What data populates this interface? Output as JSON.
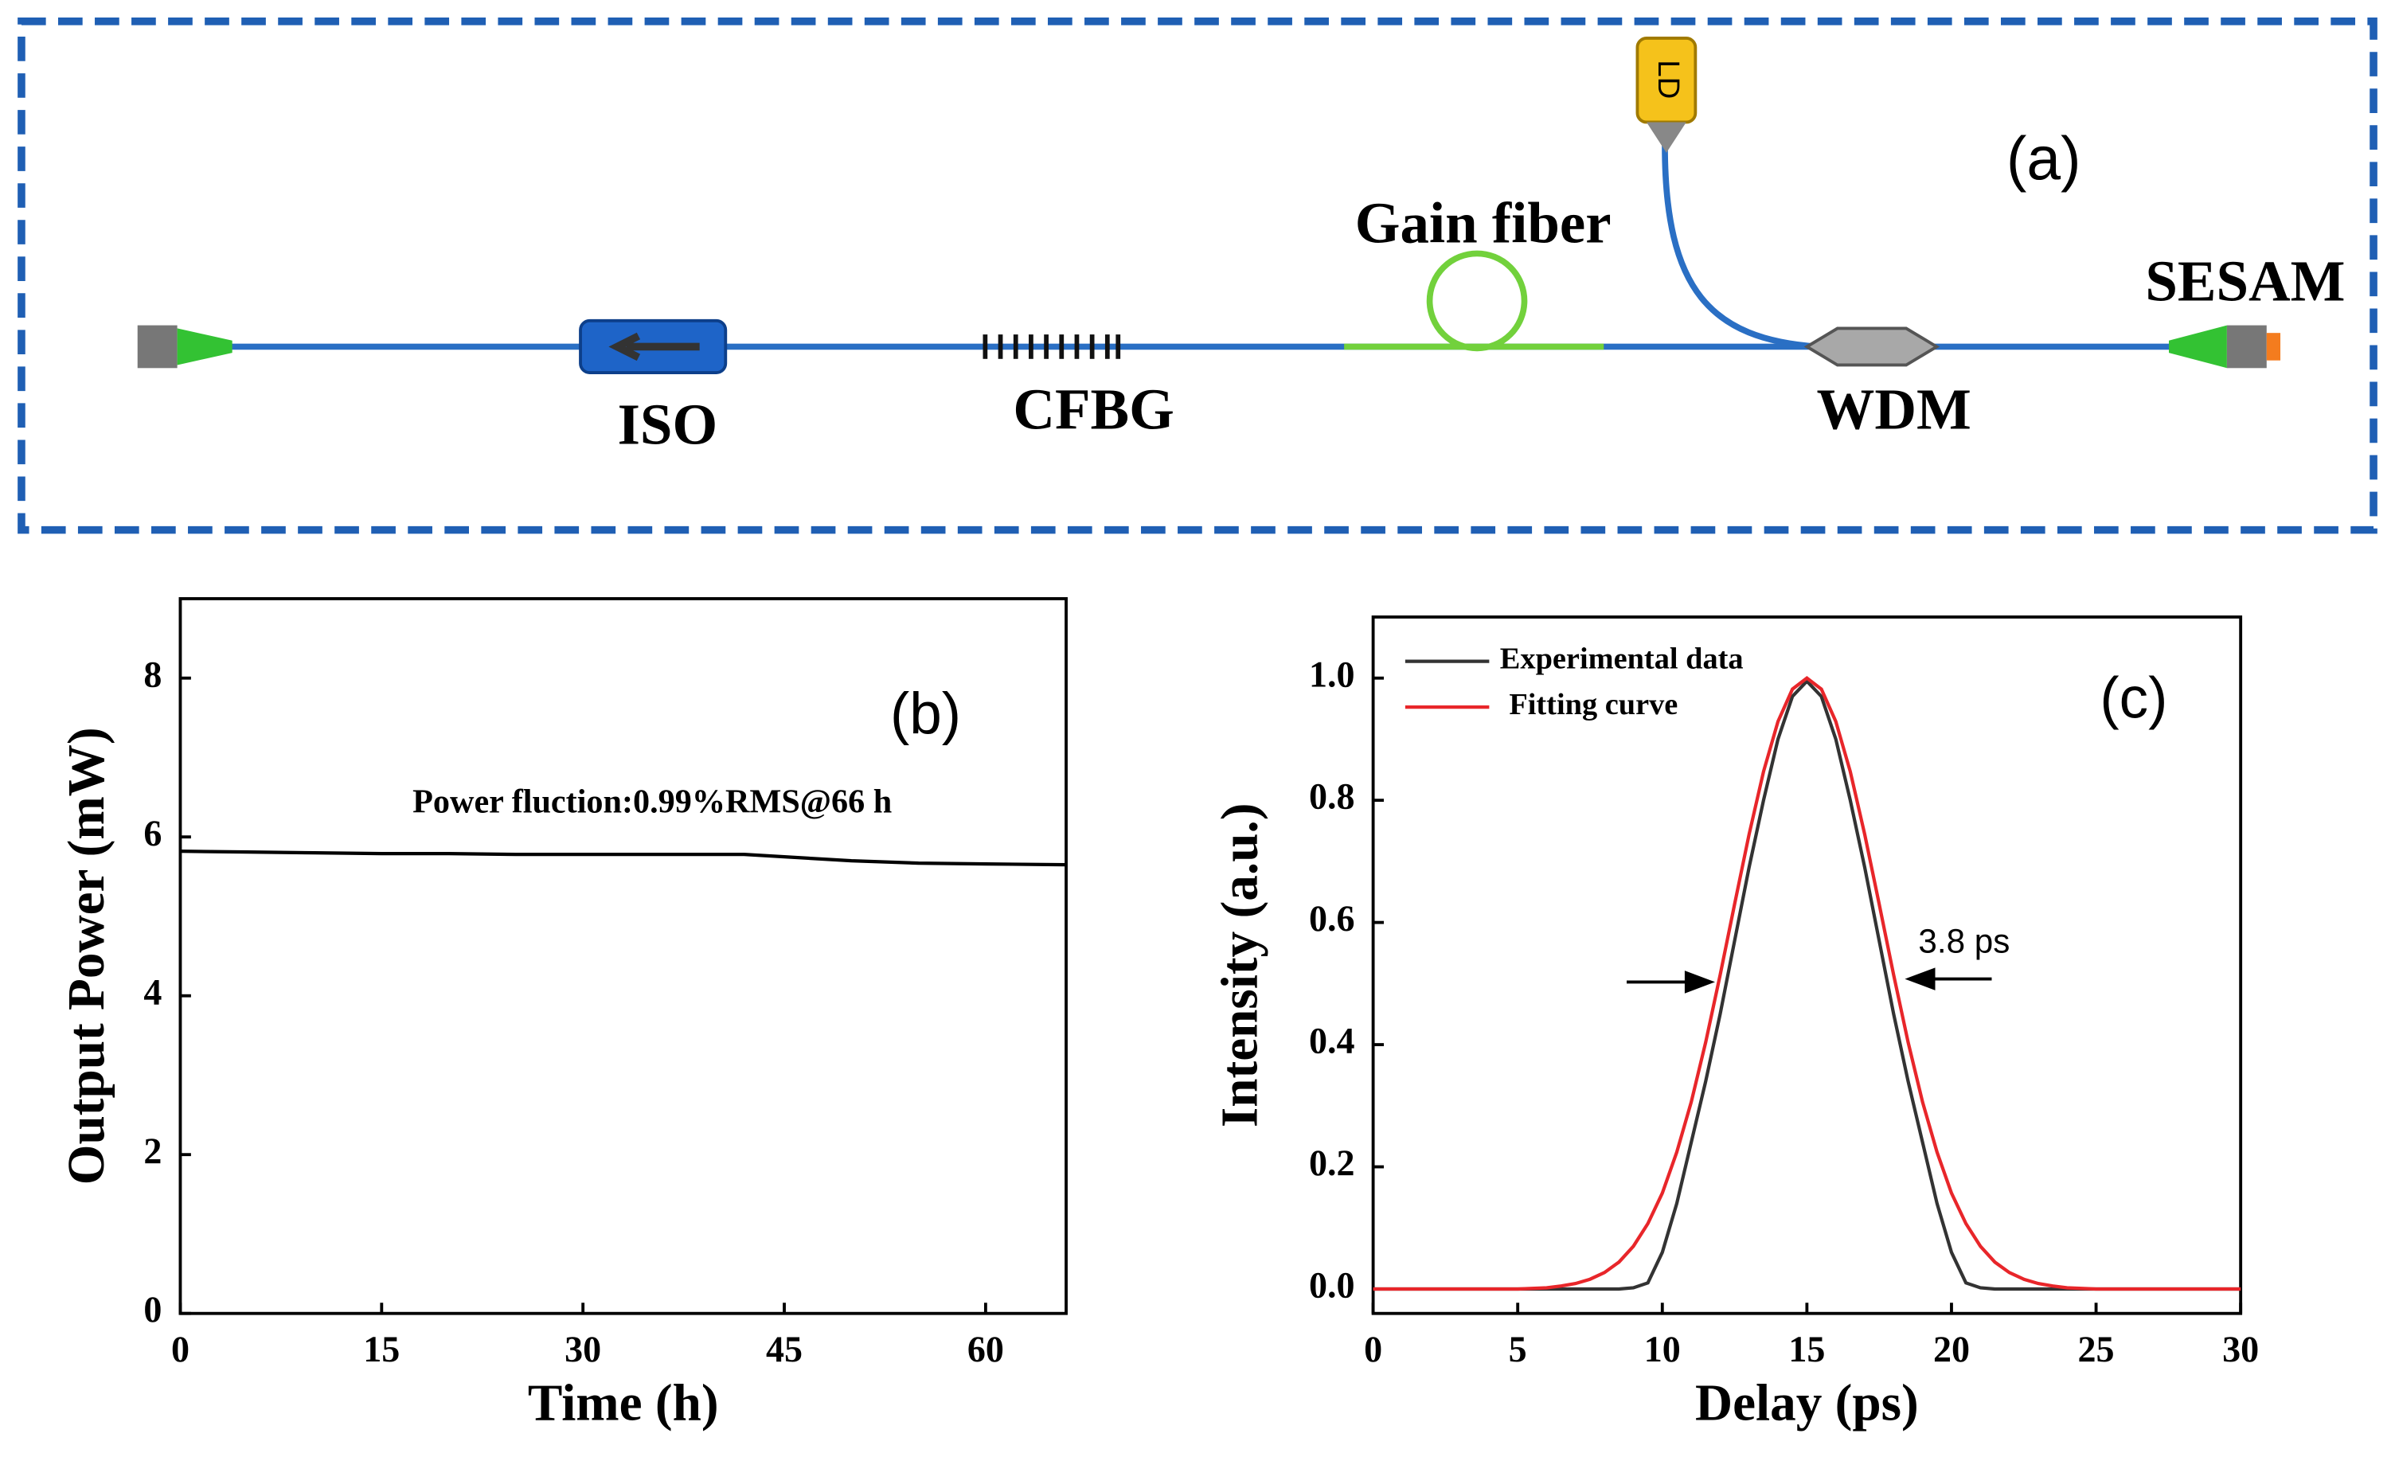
{
  "diagram": {
    "panel_label": "(a)",
    "gain_fiber": "Gain fiber",
    "iso": "ISO",
    "cfbg": "CFBG",
    "wdm": "WDM",
    "sesam": "SESAM",
    "ld": "LD"
  },
  "chart_data": [
    {
      "type": "line",
      "panel_label": "(b)",
      "annotation": "Power fluction:0.99%RMS@66 h",
      "xlabel": "Time (h)",
      "ylabel": "Output Power (mW)",
      "x": [
        0,
        5,
        10,
        15,
        20,
        25,
        30,
        35,
        40,
        42,
        45,
        50,
        55,
        60,
        66
      ],
      "series": [
        {
          "color": "#000000",
          "values": [
            5.82,
            5.81,
            5.8,
            5.79,
            5.79,
            5.78,
            5.78,
            5.78,
            5.78,
            5.78,
            5.75,
            5.7,
            5.67,
            5.66,
            5.65
          ]
        }
      ],
      "xlim": [
        0,
        66
      ],
      "ylim": [
        0,
        9
      ],
      "xticks": [
        0,
        15,
        30,
        45,
        60
      ],
      "yticks": [
        0,
        2,
        4,
        6,
        8
      ]
    },
    {
      "type": "line",
      "panel_label": "(c)",
      "annotation": "3.8 ps",
      "xlabel": "Delay (ps)",
      "ylabel": "Intensity (a.u.)",
      "x": [
        0,
        0.5,
        1,
        1.5,
        2,
        2.5,
        3,
        3.5,
        4,
        4.5,
        5,
        5.5,
        6,
        6.5,
        7,
        7.5,
        8,
        8.5,
        9,
        9.5,
        10,
        10.5,
        11,
        11.5,
        12,
        12.5,
        13,
        13.5,
        14,
        14.5,
        15,
        15.5,
        16,
        16.5,
        17,
        17.5,
        18,
        18.5,
        19,
        19.5,
        20,
        20.5,
        21,
        21.5,
        22,
        22.5,
        23,
        23.5,
        24,
        24.5,
        25,
        25.5,
        26,
        26.5,
        27,
        27.5,
        28,
        28.5,
        29,
        29.5,
        30
      ],
      "series": [
        {
          "name": "Experimental data",
          "color": "#333333",
          "values": [
            0,
            0,
            0,
            0,
            0,
            0,
            0,
            0,
            0,
            0,
            0,
            0,
            0,
            0,
            0,
            0,
            0,
            0,
            0.002,
            0.01,
            0.06,
            0.14,
            0.24,
            0.34,
            0.45,
            0.57,
            0.69,
            0.8,
            0.9,
            0.97,
            0.995,
            0.97,
            0.9,
            0.8,
            0.69,
            0.57,
            0.45,
            0.34,
            0.24,
            0.14,
            0.06,
            0.01,
            0.002,
            0,
            0,
            0,
            0,
            0,
            0,
            0,
            0,
            0,
            0,
            0,
            0,
            0,
            0,
            0,
            0,
            0,
            0
          ]
        },
        {
          "name": "Fitting curve",
          "color": "#e8262a",
          "values": [
            0,
            0,
            0,
            0,
            0,
            0,
            0,
            0,
            0,
            0,
            0,
            0.001,
            0.002,
            0.005,
            0.009,
            0.016,
            0.027,
            0.044,
            0.07,
            0.107,
            0.157,
            0.224,
            0.306,
            0.404,
            0.514,
            0.63,
            0.744,
            0.847,
            0.929,
            0.982,
            1,
            0.982,
            0.929,
            0.847,
            0.744,
            0.63,
            0.514,
            0.404,
            0.306,
            0.224,
            0.157,
            0.107,
            0.07,
            0.044,
            0.027,
            0.016,
            0.009,
            0.005,
            0.002,
            0.001,
            0,
            0,
            0,
            0,
            0,
            0,
            0,
            0,
            0,
            0,
            0
          ]
        }
      ],
      "xlim": [
        0,
        30
      ],
      "ylim": [
        -0.04,
        1.1
      ],
      "xticks": [
        0,
        5,
        10,
        15,
        20,
        25,
        30
      ],
      "yticks": [
        {
          "value": 0,
          "label": "0.0"
        },
        {
          "value": 0.2,
          "label": "0.2"
        },
        {
          "value": 0.4,
          "label": "0.4"
        },
        {
          "value": 0.6,
          "label": "0.6"
        },
        {
          "value": 0.8,
          "label": "0.8"
        },
        {
          "value": 1,
          "label": "1.0"
        }
      ]
    }
  ]
}
